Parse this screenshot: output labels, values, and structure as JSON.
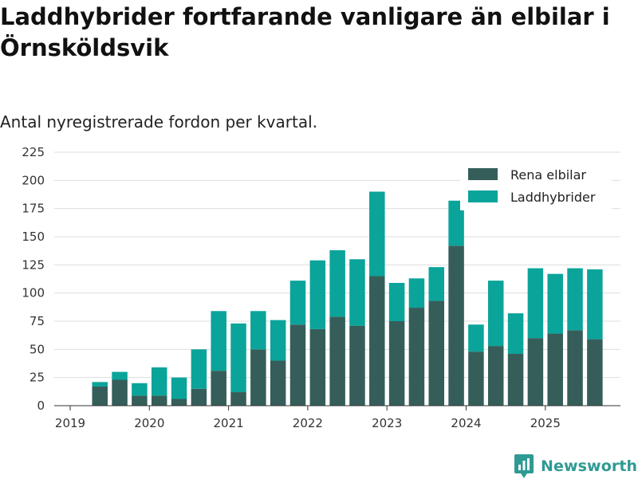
{
  "title": "Laddhybrider fortfarande vanligare än elbilar i Örnsköldsvik",
  "subtitle": "Antal nyregistrerade fordon per kvartal.",
  "brand": {
    "name": "Newsworthy"
  },
  "colors": {
    "elbilar": "#355e5a",
    "laddhybrider": "#0aa49a",
    "grid": "#dddddd",
    "axis": "#333333"
  },
  "chart_data": {
    "type": "bar",
    "stacked": true,
    "title": "Laddhybrider fortfarande vanligare än elbilar i Örnsköldsvik",
    "subtitle": "Antal nyregistrerade fordon per kvartal.",
    "xlabel": "",
    "ylabel": "",
    "ylim": [
      0,
      225
    ],
    "yticks": [
      "0",
      "25",
      "50",
      "75",
      "100",
      "125",
      "150",
      "175",
      "200",
      "225"
    ],
    "xticks": [
      "2019",
      "2020",
      "2021",
      "2022",
      "2023",
      "2024",
      "2025"
    ],
    "legend_position": "top-right",
    "categories": [
      "2019 Q2",
      "2019 Q3",
      "2019 Q4",
      "2020 Q1",
      "2020 Q2",
      "2020 Q3",
      "2020 Q4",
      "2021 Q1",
      "2021 Q2",
      "2021 Q3",
      "2021 Q4",
      "2022 Q1",
      "2022 Q2",
      "2022 Q3",
      "2022 Q4",
      "2023 Q1",
      "2023 Q2",
      "2023 Q3",
      "2023 Q4",
      "2024 Q1",
      "2024 Q2",
      "2024 Q3",
      "2024 Q4",
      "2025 Q1",
      "2025 Q2",
      "2025 Q3"
    ],
    "series": [
      {
        "name": "Rena elbilar",
        "values": [
          17,
          23,
          9,
          9,
          6,
          15,
          31,
          12,
          50,
          40,
          72,
          68,
          79,
          71,
          115,
          75,
          87,
          93,
          142,
          48,
          53,
          46,
          60,
          64,
          67,
          59
        ]
      },
      {
        "name": "Laddhybrider",
        "values": [
          4,
          7,
          11,
          25,
          19,
          35,
          53,
          61,
          34,
          36,
          39,
          61,
          59,
          59,
          75,
          34,
          26,
          30,
          40,
          24,
          58,
          36,
          62,
          53,
          55,
          62
        ]
      }
    ]
  }
}
